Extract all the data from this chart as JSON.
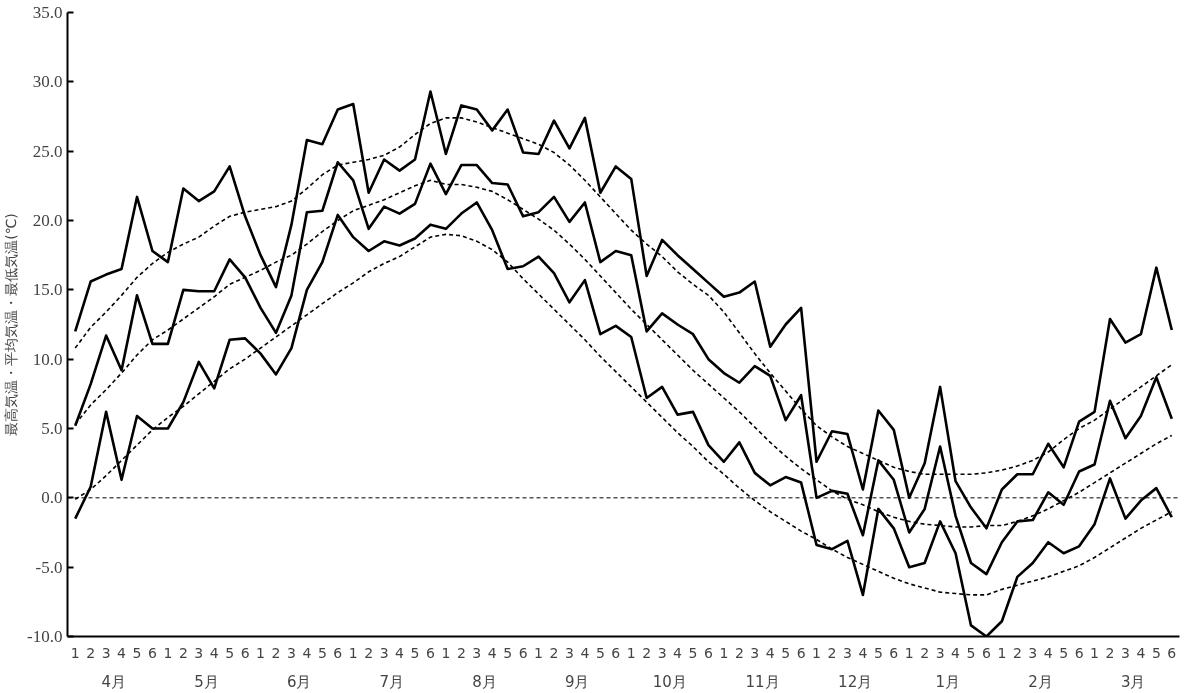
{
  "chart_data": {
    "type": "line",
    "ylabel": "最高気温・平均気温・最低気温(℃)",
    "categories": [
      "1",
      "2",
      "3",
      "4",
      "5",
      "6",
      "1",
      "2",
      "3",
      "4",
      "5",
      "6",
      "1",
      "2",
      "3",
      "4",
      "5",
      "6",
      "1",
      "2",
      "3",
      "4",
      "5",
      "6",
      "1",
      "2",
      "3",
      "4",
      "5",
      "6",
      "1",
      "2",
      "3",
      "4",
      "5",
      "6",
      "1",
      "2",
      "3",
      "4",
      "5",
      "6",
      "1",
      "2",
      "3",
      "4",
      "5",
      "6",
      "1",
      "2",
      "3",
      "4",
      "5",
      "6",
      "1",
      "2",
      "3",
      "4",
      "5",
      "6",
      "1",
      "2",
      "3",
      "4",
      "5",
      "6",
      "1",
      "2",
      "3",
      "4",
      "5",
      "6"
    ],
    "annotations": [
      "4月",
      "5月",
      "6月",
      "7月",
      "8月",
      "9月",
      "10月",
      "11月",
      "12月",
      "1月",
      "2月",
      "3月"
    ],
    "ylim": [
      -10,
      35
    ],
    "yticks": [
      {
        "value": -10,
        "label": "-10.0"
      },
      {
        "value": -5,
        "label": "-5.0"
      },
      {
        "value": 0,
        "label": "0.0"
      },
      {
        "value": 5,
        "label": "5.0"
      },
      {
        "value": 10,
        "label": "10.0"
      },
      {
        "value": 15,
        "label": "15.0"
      },
      {
        "value": 20,
        "label": "20.0"
      },
      {
        "value": 25,
        "label": "25.0"
      },
      {
        "value": 30,
        "label": "30.0"
      },
      {
        "value": 35,
        "label": "35.0"
      }
    ],
    "grid": false,
    "marker": "none",
    "ref_lines": [
      {
        "axis": "y",
        "value": 0,
        "label": null,
        "line_style": "dashed",
        "color": "#000000"
      }
    ],
    "series": [
      {
        "color": "#000000",
        "line_style": "solid",
        "values": [
          12.0,
          15.6,
          16.1,
          16.5,
          21.7,
          17.8,
          17.0,
          22.3,
          21.4,
          22.1,
          23.9,
          20.3,
          17.5,
          15.2,
          19.7,
          25.8,
          25.5,
          28.0,
          28.4,
          22.0,
          24.4,
          23.6,
          24.4,
          29.3,
          24.8,
          28.3,
          28.0,
          26.5,
          28.0,
          24.9,
          24.8,
          27.2,
          25.2,
          27.4,
          22.0,
          23.9,
          23.0,
          16.0,
          18.6,
          17.5,
          16.5,
          15.5,
          14.5,
          14.8,
          15.6,
          10.9,
          12.5,
          13.7,
          2.6,
          4.8,
          4.6,
          0.6,
          6.3,
          4.9,
          0.0,
          2.5,
          8.0,
          1.2,
          -0.7,
          -2.2,
          0.6,
          1.7,
          1.7,
          3.9,
          2.2,
          5.5,
          6.2,
          12.9,
          11.2,
          11.8,
          16.6,
          12.1
        ]
      },
      {
        "color": "#000000",
        "line_style": "solid",
        "values": [
          5.2,
          8.2,
          11.7,
          9.2,
          14.6,
          11.1,
          11.1,
          15.0,
          14.9,
          14.9,
          17.2,
          15.9,
          13.7,
          11.9,
          14.6,
          20.6,
          20.7,
          24.2,
          22.9,
          19.4,
          21.0,
          20.5,
          21.2,
          24.1,
          21.9,
          24.0,
          24.0,
          22.7,
          22.6,
          20.3,
          20.6,
          21.7,
          19.9,
          21.3,
          17.0,
          17.8,
          17.5,
          12.0,
          13.3,
          12.5,
          11.8,
          10.0,
          9.0,
          8.3,
          9.5,
          8.8,
          5.6,
          7.4,
          0.0,
          0.5,
          0.3,
          -2.7,
          2.7,
          1.3,
          -2.5,
          -0.8,
          3.7,
          -1.3,
          -4.7,
          -5.5,
          -3.2,
          -1.7,
          -1.6,
          0.4,
          -0.5,
          1.9,
          2.4,
          7.0,
          4.3,
          5.9,
          8.7,
          5.7
        ]
      },
      {
        "color": "#000000",
        "line_style": "solid",
        "values": [
          -1.5,
          0.8,
          6.2,
          1.3,
          5.9,
          5.0,
          5.0,
          6.9,
          9.8,
          7.9,
          11.4,
          11.5,
          10.4,
          8.9,
          10.8,
          15.0,
          17.0,
          20.4,
          18.8,
          17.8,
          18.5,
          18.2,
          18.7,
          19.7,
          19.4,
          20.5,
          21.3,
          19.3,
          16.5,
          16.7,
          17.4,
          16.2,
          14.1,
          15.7,
          11.8,
          12.4,
          11.6,
          7.2,
          8.0,
          6.0,
          6.2,
          3.8,
          2.6,
          4.0,
          1.8,
          0.9,
          1.5,
          1.1,
          -3.4,
          -3.7,
          -3.1,
          -7.0,
          -0.8,
          -2.2,
          -5.0,
          -4.7,
          -1.7,
          -4.0,
          -9.2,
          -10.0,
          -8.9,
          -5.7,
          -4.7,
          -3.2,
          -4.0,
          -3.5,
          -1.9,
          1.4,
          -1.5,
          -0.2,
          0.7,
          -1.4
        ]
      },
      {
        "color": "#000000",
        "line_style": "dashed",
        "values": [
          10.8,
          12.3,
          13.4,
          14.6,
          15.9,
          16.9,
          17.7,
          18.3,
          18.8,
          19.6,
          20.3,
          20.6,
          20.8,
          21.0,
          21.4,
          22.3,
          23.3,
          24.0,
          24.2,
          24.4,
          24.7,
          25.3,
          26.2,
          27.0,
          27.4,
          27.4,
          27.1,
          26.7,
          26.3,
          25.9,
          25.5,
          24.9,
          24.0,
          22.9,
          21.7,
          20.5,
          19.3,
          18.3,
          17.4,
          16.3,
          15.4,
          14.6,
          13.4,
          11.9,
          10.4,
          9.0,
          7.7,
          6.4,
          5.2,
          4.4,
          3.7,
          3.2,
          2.7,
          2.2,
          1.9,
          1.7,
          1.7,
          1.7,
          1.7,
          1.8,
          2.0,
          2.3,
          2.7,
          3.3,
          4.2,
          5.0,
          5.6,
          6.4,
          7.2,
          8.0,
          8.8,
          9.6
        ]
      },
      {
        "color": "#000000",
        "line_style": "dashed",
        "values": [
          5.3,
          6.7,
          7.8,
          9.0,
          10.3,
          11.4,
          12.1,
          12.9,
          13.7,
          14.5,
          15.4,
          15.9,
          16.4,
          17.0,
          17.5,
          18.3,
          19.2,
          20.0,
          20.7,
          21.1,
          21.5,
          22.0,
          22.5,
          22.9,
          22.6,
          22.6,
          22.4,
          22.1,
          21.5,
          20.8,
          20.1,
          19.3,
          18.3,
          17.2,
          16.0,
          14.8,
          13.6,
          12.5,
          11.4,
          10.3,
          9.2,
          8.2,
          7.2,
          6.2,
          5.1,
          4.0,
          3.0,
          2.1,
          1.3,
          0.5,
          -0.1,
          -0.5,
          -1.0,
          -1.4,
          -1.7,
          -1.9,
          -2.0,
          -2.1,
          -2.1,
          -2.0,
          -2.0,
          -1.7,
          -1.3,
          -0.8,
          -0.2,
          0.4,
          1.1,
          1.8,
          2.5,
          3.2,
          3.9,
          4.5
        ]
      },
      {
        "color": "#000000",
        "line_style": "dashed",
        "values": [
          -0.1,
          0.6,
          1.6,
          2.7,
          3.8,
          4.9,
          5.8,
          6.6,
          7.5,
          8.4,
          9.3,
          10.0,
          10.8,
          11.6,
          12.4,
          13.2,
          14.0,
          14.8,
          15.5,
          16.3,
          16.9,
          17.4,
          18.1,
          18.8,
          19.0,
          18.9,
          18.5,
          17.9,
          17.0,
          15.8,
          14.7,
          13.6,
          12.5,
          11.4,
          10.2,
          9.1,
          8.0,
          6.9,
          5.8,
          4.7,
          3.7,
          2.6,
          1.7,
          0.7,
          -0.2,
          -1.0,
          -1.7,
          -2.4,
          -3.0,
          -3.7,
          -4.3,
          -4.8,
          -5.3,
          -5.8,
          -6.2,
          -6.5,
          -6.8,
          -6.9,
          -7.0,
          -7.0,
          -6.6,
          -6.3,
          -6.0,
          -5.7,
          -5.3,
          -4.9,
          -4.3,
          -3.6,
          -2.9,
          -2.2,
          -1.6,
          -1.0
        ]
      }
    ]
  }
}
